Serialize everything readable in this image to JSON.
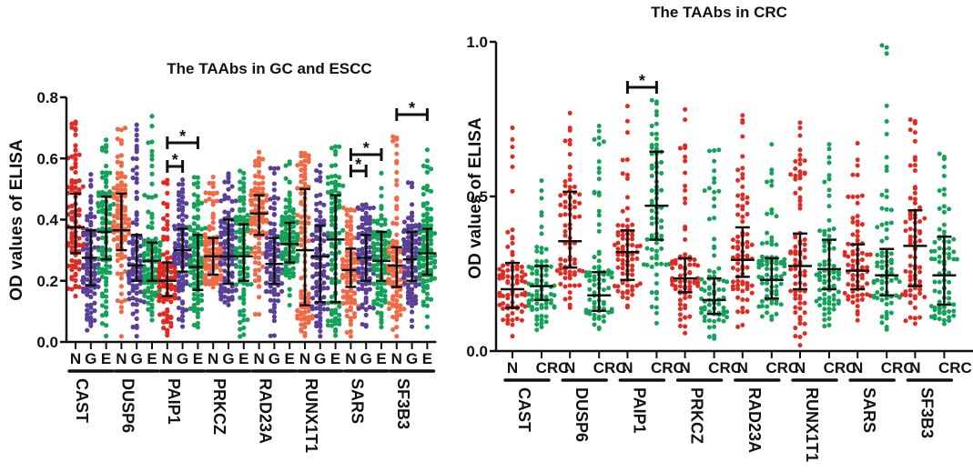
{
  "colors": {
    "N": "#e02a22",
    "G": "#5a3f98",
    "E": "#13a257",
    "N_alt": "#f26a45",
    "CRC": "#13a257",
    "axis": "#111111"
  },
  "chart_data": [
    {
      "type": "scatter",
      "subtype": "dot-plot with median and interquartile range",
      "title": "The TAAbs in GC and ESCC",
      "xlabel": "",
      "ylabel": "OD values of ELISA",
      "ylim": [
        0.0,
        0.8
      ],
      "yticks": [
        "0.0",
        "0.2",
        "0.4",
        "0.6",
        "0.8"
      ],
      "yticks_values": [
        0.0,
        0.2,
        0.4,
        0.6,
        0.8
      ],
      "subgroups": [
        "N",
        "G",
        "E"
      ],
      "categories": [
        "CAST",
        "DUSP6",
        "PAIP1",
        "PRKCZ",
        "RAD23A",
        "RUNX1T1",
        "SARS",
        "SF3B3"
      ],
      "series": [
        {
          "name": "N",
          "median": [
            0.375,
            0.365,
            0.2,
            0.28,
            0.42,
            0.3,
            0.235,
            0.25
          ],
          "q1": [
            0.29,
            0.3,
            0.15,
            0.22,
            0.35,
            0.12,
            0.18,
            0.18
          ],
          "q3": [
            0.485,
            0.485,
            0.26,
            0.34,
            0.48,
            0.5,
            0.305,
            0.31
          ],
          "max": [
            0.72,
            0.7,
            0.53,
            0.54,
            0.62,
            0.62,
            0.44,
            0.67
          ],
          "min": [
            0.15,
            0.02,
            0.02,
            0.18,
            0.09,
            0.02,
            0.02,
            0.02
          ]
        },
        {
          "name": "G",
          "median": [
            0.275,
            0.25,
            0.3,
            0.28,
            0.255,
            0.28,
            0.275,
            0.27
          ],
          "q1": [
            0.185,
            0.2,
            0.23,
            0.19,
            0.19,
            0.13,
            0.2,
            0.2
          ],
          "q3": [
            0.365,
            0.35,
            0.37,
            0.4,
            0.34,
            0.38,
            0.35,
            0.36
          ],
          "max": [
            0.55,
            0.71,
            0.53,
            0.55,
            0.57,
            0.58,
            0.45,
            0.52
          ],
          "min": [
            0.04,
            0.02,
            0.05,
            0.12,
            0.02,
            0.02,
            0.05,
            0.05
          ]
        },
        {
          "name": "E",
          "median": [
            0.36,
            0.265,
            0.245,
            0.28,
            0.32,
            0.335,
            0.265,
            0.29
          ],
          "q1": [
            0.27,
            0.2,
            0.17,
            0.2,
            0.26,
            0.13,
            0.2,
            0.22
          ],
          "q3": [
            0.475,
            0.325,
            0.35,
            0.385,
            0.39,
            0.48,
            0.36,
            0.37
          ],
          "max": [
            0.66,
            0.74,
            0.54,
            0.56,
            0.59,
            0.64,
            0.55,
            0.63
          ],
          "min": [
            0.02,
            0.07,
            0.05,
            0.02,
            0.12,
            0.02,
            0.05,
            0.05
          ]
        }
      ],
      "significance": [
        {
          "category": "PAIP1",
          "between": [
            "N",
            "G"
          ],
          "label": "*"
        },
        {
          "category": "PAIP1",
          "between": [
            "N",
            "E"
          ],
          "label": "*"
        },
        {
          "category": "SARS",
          "between": [
            "N",
            "G"
          ],
          "label": "*"
        },
        {
          "category": "SARS",
          "between": [
            "N",
            "E"
          ],
          "label": "*"
        },
        {
          "category": "SF3B3",
          "between": [
            "N",
            "E"
          ],
          "label": "*"
        }
      ],
      "grid": false,
      "legend": "none"
    },
    {
      "type": "scatter",
      "subtype": "dot-plot with median and interquartile range",
      "title": "The TAAbs in CRC",
      "xlabel": "",
      "ylabel": "OD values of ELISA",
      "ylim": [
        0.0,
        1.0
      ],
      "yticks": [
        "0.0",
        "0.5",
        "1.0"
      ],
      "yticks_values": [
        0.0,
        0.5,
        1.0
      ],
      "subgroups": [
        "N",
        "CRC"
      ],
      "categories": [
        "CAST",
        "DUSP6",
        "PAIP1",
        "PRKCZ",
        "RAD23A",
        "RUNX1T1",
        "SARS",
        "SF3B3"
      ],
      "series": [
        {
          "name": "N",
          "median": [
            0.2,
            0.355,
            0.32,
            0.235,
            0.295,
            0.275,
            0.26,
            0.34
          ],
          "q1": [
            0.14,
            0.27,
            0.23,
            0.19,
            0.24,
            0.2,
            0.2,
            0.21
          ],
          "q3": [
            0.285,
            0.515,
            0.39,
            0.3,
            0.4,
            0.38,
            0.345,
            0.455
          ],
          "max": [
            0.72,
            0.77,
            0.79,
            0.78,
            0.76,
            0.74,
            0.67,
            0.75
          ],
          "min": [
            0.05,
            0.14,
            0.14,
            0.06,
            0.08,
            0.02,
            0.1,
            0.09
          ]
        },
        {
          "name": "CRC",
          "median": [
            0.21,
            0.18,
            0.47,
            0.165,
            0.23,
            0.265,
            0.245,
            0.245
          ],
          "q1": [
            0.165,
            0.13,
            0.36,
            0.12,
            0.17,
            0.2,
            0.18,
            0.15
          ],
          "q3": [
            0.275,
            0.255,
            0.645,
            0.235,
            0.3,
            0.36,
            0.33,
            0.37
          ],
          "max": [
            0.55,
            0.73,
            0.81,
            0.65,
            0.67,
            0.67,
            0.99,
            0.64
          ],
          "min": [
            0.07,
            0.07,
            0.09,
            0.04,
            0.1,
            0.08,
            0.07,
            0.09
          ]
        }
      ],
      "significance": [
        {
          "category": "PAIP1",
          "between": [
            "N",
            "CRC"
          ],
          "label": "*"
        }
      ],
      "grid": false,
      "legend": "none"
    }
  ]
}
